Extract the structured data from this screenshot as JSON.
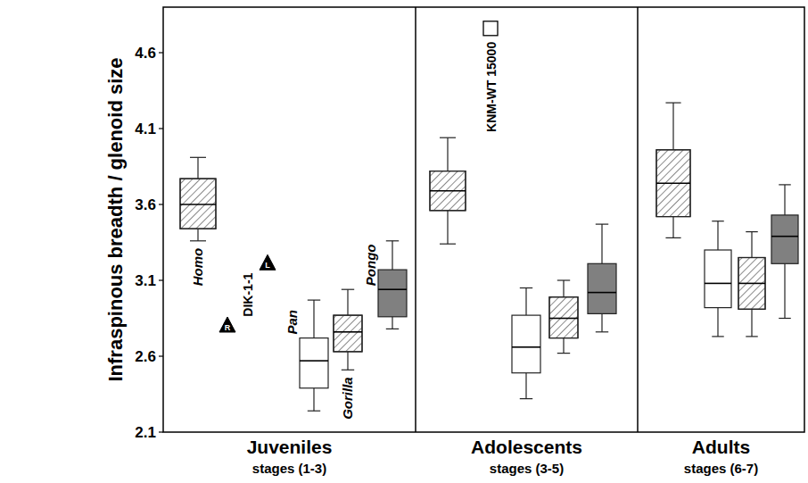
{
  "chart_data": {
    "type": "box",
    "y_label": "Infraspinous breadth / glenoid size",
    "ylim": [
      2.1,
      4.9
    ],
    "yticks": [
      2.1,
      2.6,
      3.1,
      3.6,
      4.1,
      4.6
    ],
    "series": [
      {
        "name": "Homo",
        "color": "#ffffff",
        "marker": "hatched"
      },
      {
        "name": "Pan",
        "color": "#ffffff",
        "marker": "plain"
      },
      {
        "name": "Gorilla",
        "color": "#ffffff",
        "marker": "hatched"
      },
      {
        "name": "Pongo",
        "color": "#808080",
        "marker": "plain"
      }
    ],
    "panels": [
      {
        "title": "Juveniles",
        "subtitle": "stages (1-3)",
        "boxes": [
          {
            "whisker_low": 3.36,
            "q1": 3.44,
            "median": 3.6,
            "q3": 3.77,
            "whisker_high": 3.91
          },
          {
            "whisker_low": 2.24,
            "q1": 2.39,
            "median": 2.57,
            "q3": 2.72,
            "whisker_high": 2.97
          },
          {
            "whisker_low": 2.51,
            "q1": 2.63,
            "median": 2.76,
            "q3": 2.87,
            "whisker_high": 3.04
          },
          {
            "whisker_low": 2.78,
            "q1": 2.86,
            "median": 3.04,
            "q3": 3.17,
            "whisker_high": 3.36
          }
        ],
        "fossils": [
          {
            "name": "DIK-1-1",
            "marker": "triangle",
            "points": [
              {
                "label": "R",
                "value": 2.8
              },
              {
                "label": "L",
                "value": 3.21
              }
            ]
          }
        ]
      },
      {
        "title": "Adolescents",
        "subtitle": "stages (3-5)",
        "boxes": [
          {
            "whisker_low": 3.34,
            "q1": 3.56,
            "median": 3.69,
            "q3": 3.82,
            "whisker_high": 4.04
          },
          {
            "whisker_low": 2.32,
            "q1": 2.49,
            "median": 2.66,
            "q3": 2.87,
            "whisker_high": 3.05
          },
          {
            "whisker_low": 2.62,
            "q1": 2.72,
            "median": 2.85,
            "q3": 2.99,
            "whisker_high": 3.1
          },
          {
            "whisker_low": 2.76,
            "q1": 2.88,
            "median": 3.02,
            "q3": 3.21,
            "whisker_high": 3.47
          }
        ],
        "fossils": [
          {
            "name": "KNM-WT 15000",
            "marker": "square",
            "points": [
              {
                "value": 4.76
              }
            ]
          }
        ]
      },
      {
        "title": "Adults",
        "subtitle": "stages (6-7)",
        "boxes": [
          {
            "whisker_low": 3.38,
            "q1": 3.52,
            "median": 3.74,
            "q3": 3.96,
            "whisker_high": 4.27
          },
          {
            "whisker_low": 2.73,
            "q1": 2.92,
            "median": 3.08,
            "q3": 3.3,
            "whisker_high": 3.49
          },
          {
            "whisker_low": 2.73,
            "q1": 2.91,
            "median": 3.08,
            "q3": 3.25,
            "whisker_high": 3.42
          },
          {
            "whisker_low": 2.85,
            "q1": 3.21,
            "median": 3.39,
            "q3": 3.53,
            "whisker_high": 3.73
          }
        ],
        "fossils": []
      }
    ]
  }
}
